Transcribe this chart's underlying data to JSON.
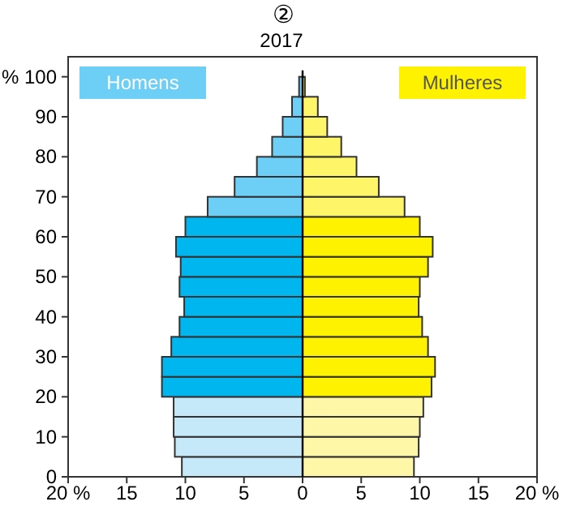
{
  "chart_data": {
    "type": "bar",
    "orientation": "horizontal",
    "title": "2017",
    "annotations": [
      "②"
    ],
    "ylabel": "%",
    "x": [
      2.5,
      7.5,
      12.5,
      17.5,
      22.5,
      27.5,
      32.5,
      37.5,
      42.5,
      47.5,
      52.5,
      57.5,
      62.5,
      67.5,
      72.5,
      77.5,
      82.5,
      87.5,
      92.5,
      97.5
    ],
    "series": [
      {
        "name": "Homens",
        "color": "#6dcff6",
        "values": [
          -10.3,
          -10.9,
          -11.0,
          -11.0,
          -12.0,
          -12.0,
          -11.2,
          -10.5,
          -10.1,
          -10.5,
          -10.4,
          -10.8,
          -10.0,
          -8.1,
          -5.8,
          -3.9,
          -2.6,
          -1.7,
          -0.9,
          -0.3
        ],
        "colors": [
          "#c5e9f9",
          "#c5e9f9",
          "#c5e9f9",
          "#c5e9f9",
          "#00b6ef",
          "#00b6ef",
          "#00b6ef",
          "#00b6ef",
          "#00b6ef",
          "#00b6ef",
          "#00b6ef",
          "#00b6ef",
          "#00b6ef",
          "#6dcff6",
          "#6dcff6",
          "#6dcff6",
          "#6dcff6",
          "#6dcff6",
          "#6dcff6",
          "#6dcff6"
        ]
      },
      {
        "name": "Mulheres",
        "color": "#fff200",
        "values": [
          9.5,
          9.9,
          10.0,
          10.3,
          11.0,
          11.3,
          10.7,
          10.2,
          9.9,
          10.0,
          10.7,
          11.1,
          10.0,
          8.7,
          6.5,
          4.6,
          3.3,
          2.1,
          1.3,
          0.2
        ],
        "colors": [
          "#fff7a8",
          "#fff7a8",
          "#fff7a8",
          "#fff7a8",
          "#fff200",
          "#fff200",
          "#fff200",
          "#fff200",
          "#fff200",
          "#fff200",
          "#fff200",
          "#fff200",
          "#fff200",
          "#fff568",
          "#fff568",
          "#fff568",
          "#fff568",
          "#fff568",
          "#fff568",
          "#fff568"
        ]
      }
    ],
    "xlim": [
      -20,
      20
    ],
    "xticks": [
      {
        "value": -20,
        "label": "20 %"
      },
      {
        "value": -15,
        "label": "15"
      },
      {
        "value": -10,
        "label": "10"
      },
      {
        "value": -5,
        "label": "5"
      },
      0,
      5,
      10,
      15,
      {
        "value": 20,
        "label": "20 %"
      }
    ],
    "ylim": [
      0,
      105
    ],
    "yticks": [
      0,
      10,
      20,
      30,
      40,
      50,
      60,
      70,
      80,
      90,
      100
    ],
    "ref_lines": [
      {
        "axis": "x",
        "value": 0,
        "color": "#000000"
      }
    ],
    "legend": "top",
    "grid": false,
    "stacked": true
  }
}
